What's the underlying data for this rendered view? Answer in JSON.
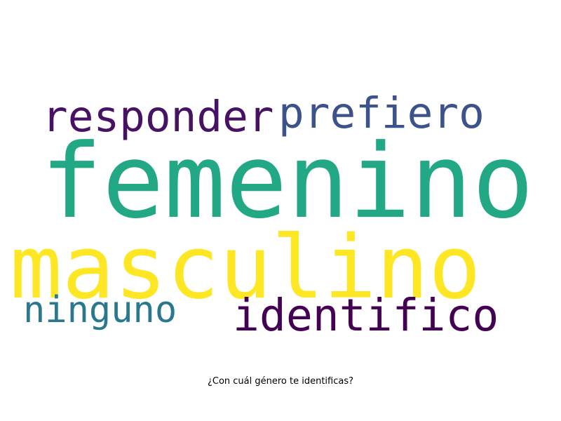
{
  "word_cloud": {
    "words": [
      {
        "text": "femenino",
        "color": "#22a884"
      },
      {
        "text": "masculino",
        "color": "#fde725"
      },
      {
        "text": "responder",
        "color": "#471164"
      },
      {
        "text": "prefiero",
        "color": "#3b528b"
      },
      {
        "text": "identifico",
        "color": "#440154"
      },
      {
        "text": "ninguno",
        "color": "#2a788e"
      }
    ]
  },
  "caption": "¿Con cuál género te identificas?"
}
